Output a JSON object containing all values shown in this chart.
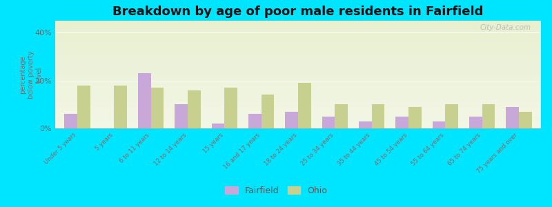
{
  "title": "Breakdown by age of poor male residents in Fairfield",
  "ylabel": "percentage\nbelow poverty\nlevel",
  "categories": [
    "Under 5 years",
    "5 years",
    "6 to 11 years",
    "12 to 14 years",
    "15 years",
    "16 and 17 years",
    "18 to 24 years",
    "25 to 34 years",
    "35 to 44 years",
    "45 to 54 years",
    "55 to 64 years",
    "65 to 74 years",
    "75 years and over"
  ],
  "fairfield": [
    6,
    0,
    23,
    10,
    2,
    6,
    7,
    5,
    3,
    5,
    3,
    5,
    9
  ],
  "ohio": [
    18,
    18,
    17,
    16,
    17,
    14,
    19,
    10,
    10,
    9,
    10,
    10,
    7
  ],
  "fairfield_color": "#c8a8d8",
  "ohio_color": "#c8d090",
  "bg_plot_top": "#e8f0d0",
  "bg_plot_bottom": "#f8faf0",
  "bg_outer": "#00e5ff",
  "ylim": [
    0,
    45
  ],
  "yticks": [
    0,
    20,
    40
  ],
  "ytick_labels": [
    "0%",
    "20%",
    "40%"
  ],
  "title_fontsize": 13,
  "bar_width": 0.35,
  "watermark": "City-Data.com"
}
